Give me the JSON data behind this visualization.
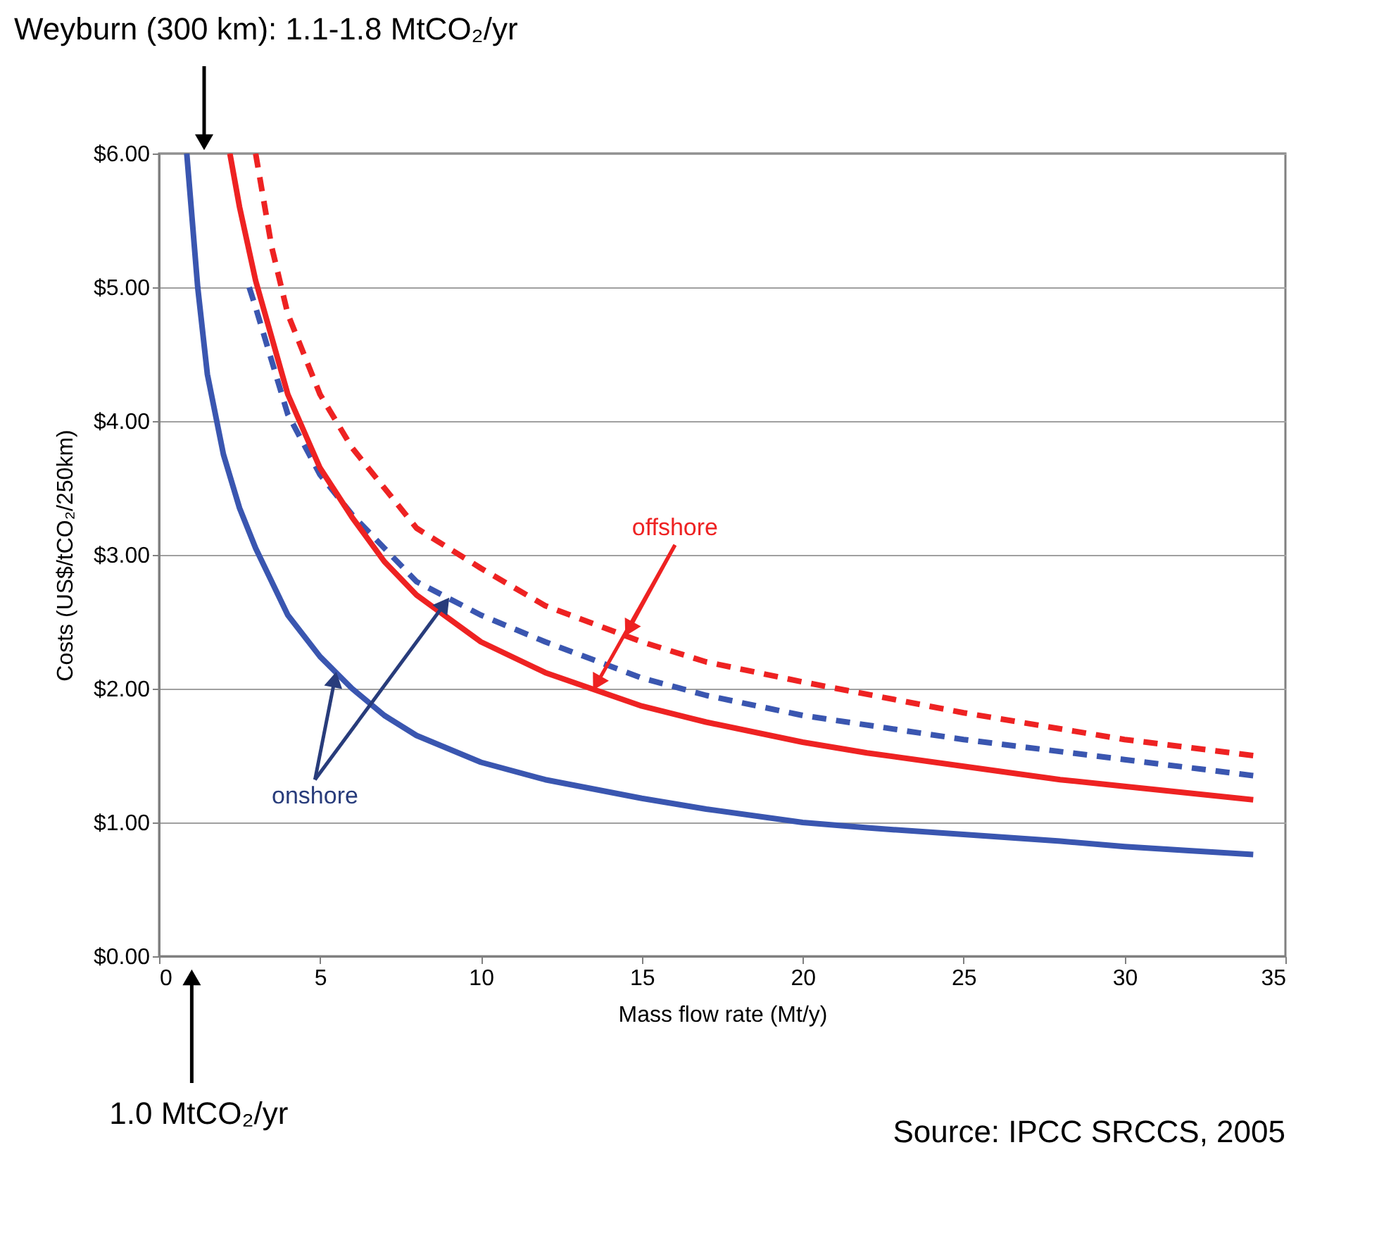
{
  "chart_data": {
    "type": "line",
    "xlabel": "Mass flow rate (Mt/y)",
    "ylabel": "Costs (US$/tCO₂/250km)",
    "xlim": [
      0,
      35
    ],
    "xticks": [
      0,
      5,
      10,
      15,
      20,
      25,
      30,
      35
    ],
    "ylim": [
      0,
      6
    ],
    "yticks": [
      {
        "value": 0,
        "label": "$0.00"
      },
      {
        "value": 1,
        "label": "$1.00"
      },
      {
        "value": 2,
        "label": "$2.00"
      },
      {
        "value": 3,
        "label": "$3.00"
      },
      {
        "value": 4,
        "label": "$4.00"
      },
      {
        "value": 5,
        "label": "$5.00"
      },
      {
        "value": 6,
        "label": "$6.00"
      }
    ],
    "grid": "y",
    "series": [
      {
        "color": "#3a56b0",
        "line_style": "solid",
        "x": [
          0.86,
          1.2,
          1.5,
          2,
          2.5,
          3,
          4,
          5,
          6,
          7,
          8,
          10,
          12,
          15,
          17,
          20,
          22,
          25,
          28,
          30,
          32,
          34
        ],
        "values": [
          6.0,
          5.0,
          4.35,
          3.75,
          3.35,
          3.05,
          2.55,
          2.24,
          2.0,
          1.8,
          1.65,
          1.45,
          1.32,
          1.18,
          1.1,
          1.0,
          0.96,
          0.91,
          0.86,
          0.82,
          0.79,
          0.76
        ]
      },
      {
        "color": "#3a56b0",
        "line_style": "dashed",
        "x": [
          2.8,
          3,
          4,
          5,
          6,
          7,
          8,
          10,
          12,
          15,
          17,
          20,
          25,
          30,
          34
        ],
        "values": [
          5.0,
          4.85,
          4.05,
          3.6,
          3.3,
          3.05,
          2.8,
          2.55,
          2.35,
          2.08,
          1.95,
          1.8,
          1.62,
          1.47,
          1.35
        ]
      },
      {
        "color": "#ee2222",
        "line_style": "solid",
        "x": [
          2.2,
          2.5,
          3,
          4,
          5,
          6,
          7,
          8,
          10,
          12,
          15,
          17,
          20,
          22,
          25,
          28,
          30,
          32,
          34
        ],
        "values": [
          6.0,
          5.6,
          5.05,
          4.2,
          3.65,
          3.28,
          2.95,
          2.7,
          2.35,
          2.12,
          1.87,
          1.75,
          1.6,
          1.52,
          1.42,
          1.32,
          1.27,
          1.22,
          1.17
        ]
      },
      {
        "color": "#ee2222",
        "line_style": "dashed",
        "x": [
          3.0,
          3.5,
          4,
          5,
          6,
          7,
          8,
          10,
          12,
          15,
          17,
          20,
          25,
          30,
          34
        ],
        "values": [
          6.0,
          5.3,
          4.8,
          4.2,
          3.8,
          3.5,
          3.2,
          2.9,
          2.62,
          2.35,
          2.2,
          2.05,
          1.82,
          1.62,
          1.5
        ]
      }
    ],
    "annotations": [
      "Weyburn (300 km): 1.1-1.8 MtCO₂/yr",
      "1.0 MtCO₂/yr",
      {
        "text": "offshore",
        "x": 14.5,
        "y": 2.4
      },
      {
        "text": "onshore",
        "x": 5.5,
        "y": 2.12
      },
      "Source: IPCC SRCCS, 2005"
    ]
  }
}
